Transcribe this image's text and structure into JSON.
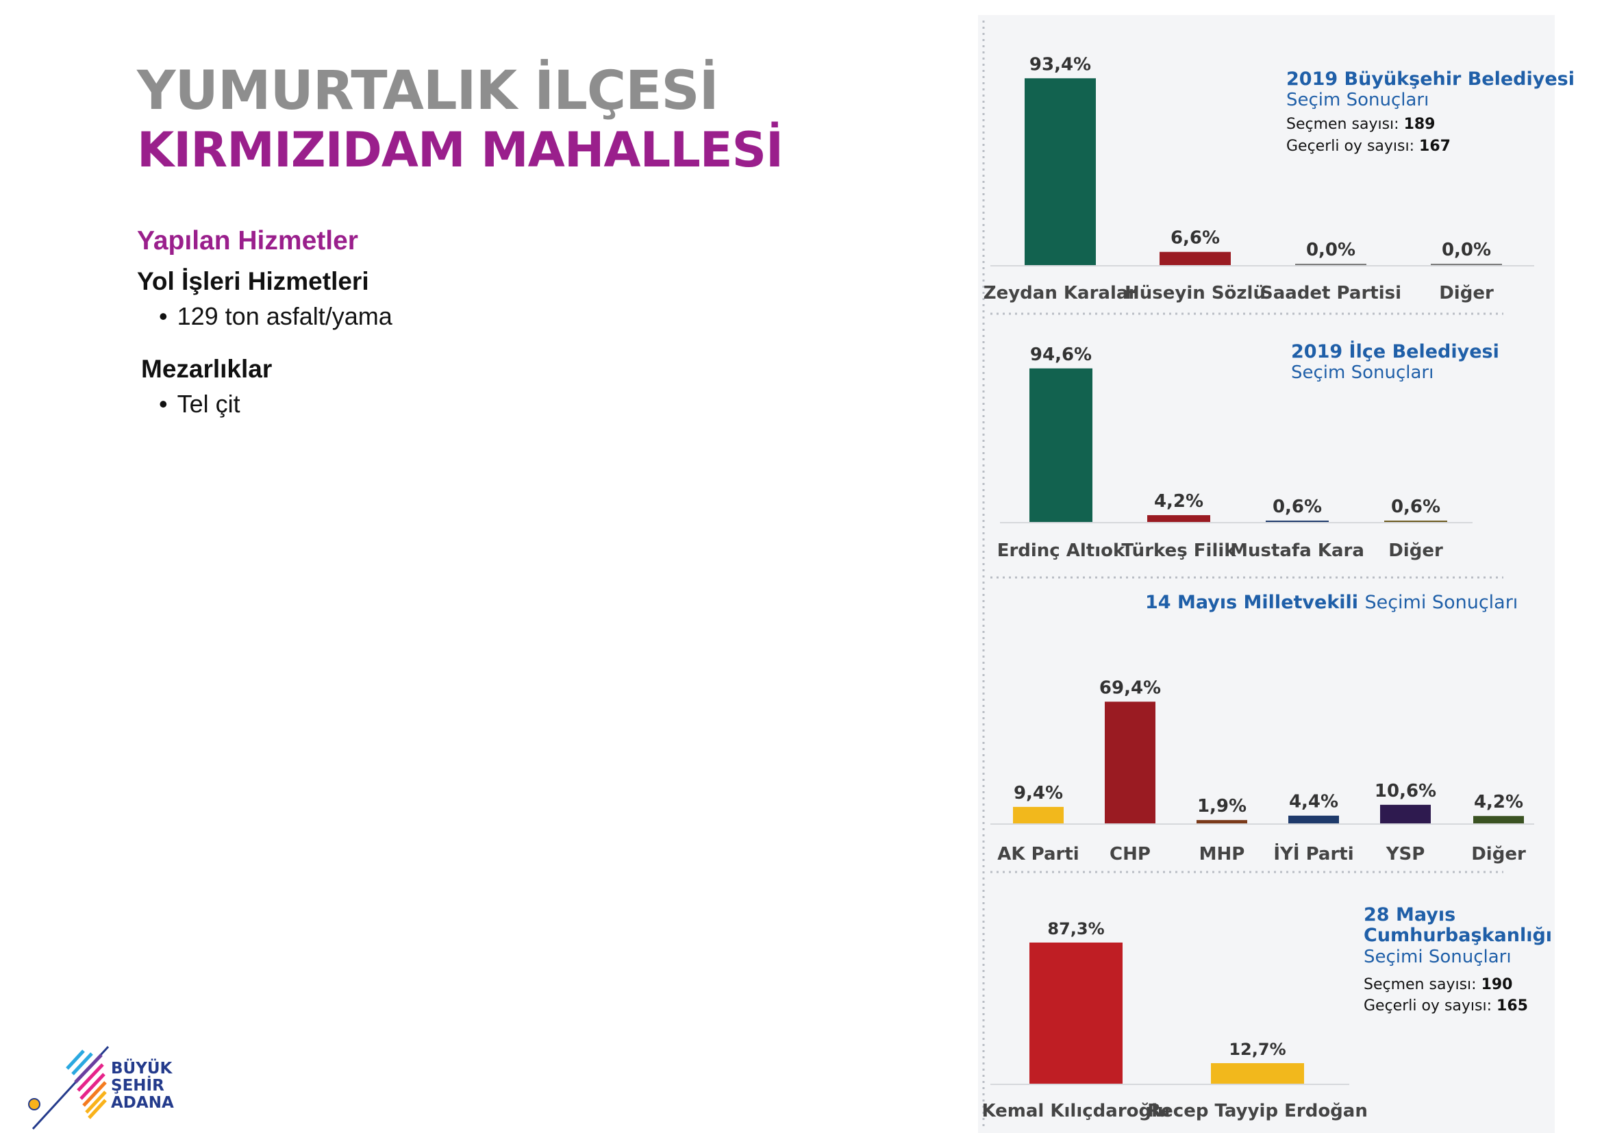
{
  "title_line1": "YUMURTALIK İLÇESİ",
  "title_line2": "KIRMIZIDAM MAHALLESİ",
  "services": {
    "heading": "Yapılan Hizmetler",
    "groups": [
      {
        "title": "Yol İşleri Hizmetleri",
        "items": [
          "129 ton asfalt/yama"
        ]
      },
      {
        "title": "Mezarlıklar",
        "items": [
          "Tel çit"
        ]
      }
    ]
  },
  "logo": {
    "line1": "BÜYÜK",
    "line2": "ŞEHİR",
    "line3": "ADANA"
  },
  "colors": {
    "title_gray": "#8e8e8e",
    "title_purple": "#9a1f8c",
    "chart_title_blue": "#1f5fa8",
    "panel_bg": "#f4f5f7"
  },
  "chart_data": [
    {
      "type": "bar",
      "title": "2019 Büyükşehir Belediyesi",
      "subtitle": "Seçim Sonuçları",
      "voters_label": "Seçmen sayısı:",
      "voters": "189",
      "valid_label": "Geçerli oy sayısı:",
      "valid": "167",
      "categories": [
        "Zeydan Karalar",
        "Hüseyin Sözlü",
        "Saadet Partisi",
        "Diğer"
      ],
      "values": [
        93.4,
        6.6,
        0.0,
        0.0
      ],
      "labels": [
        "93,4%",
        "6,6%",
        "0,0%",
        "0,0%"
      ],
      "colors": [
        "#12624f",
        "#9a1b22",
        "#7a7a7a",
        "#7a7a7a"
      ],
      "ylim": [
        0,
        100
      ]
    },
    {
      "type": "bar",
      "title": "2019 İlçe Belediyesi",
      "subtitle": "Seçim Sonuçları",
      "categories": [
        "Erdinç Altıok",
        "Türkeş Filik",
        "Mustafa Kara",
        "Diğer"
      ],
      "values": [
        94.6,
        4.2,
        0.6,
        0.6
      ],
      "labels": [
        "94,6%",
        "4,2%",
        "0,6%",
        "0,6%"
      ],
      "colors": [
        "#12624f",
        "#9a1b22",
        "#1e3a6b",
        "#6b5a1e"
      ],
      "ylim": [
        0,
        100
      ]
    },
    {
      "type": "bar",
      "title": "14 Mayıs Milletvekili",
      "subtitle": "Seçimi Sonuçları",
      "categories": [
        "AK Parti",
        "CHP",
        "MHP",
        "İYİ Parti",
        "YSP",
        "Diğer"
      ],
      "values": [
        9.4,
        69.4,
        1.9,
        4.4,
        10.6,
        4.2
      ],
      "labels": [
        "9,4%",
        "69,4%",
        "1,9%",
        "4,4%",
        "10,6%",
        "4,2%"
      ],
      "colors": [
        "#f2b81c",
        "#9a1b22",
        "#7a3a1a",
        "#1e3a6b",
        "#2e1a4f",
        "#3a5222"
      ],
      "ylim": [
        0,
        100
      ]
    },
    {
      "type": "bar",
      "title": "28 Mayıs Cumhurbaşkanlığı",
      "subtitle": "Seçimi Sonuçları",
      "voters_label": "Seçmen sayısı:",
      "voters": "190",
      "valid_label": "Geçerli oy sayısı:",
      "valid": "165",
      "categories": [
        "Kemal Kılıçdaroğlu",
        "Recep Tayyip Erdoğan"
      ],
      "values": [
        87.3,
        12.7
      ],
      "labels": [
        "87,3%",
        "12,7%"
      ],
      "colors": [
        "#bf1e24",
        "#f2b81c"
      ],
      "ylim": [
        0,
        100
      ]
    }
  ]
}
